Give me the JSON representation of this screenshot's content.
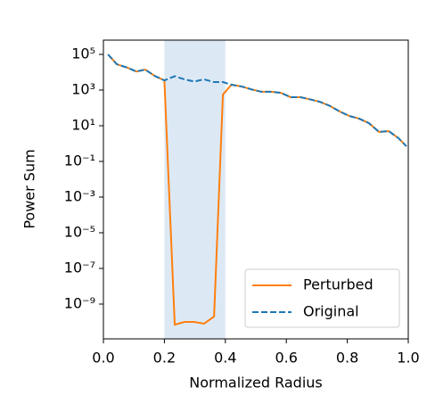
{
  "chart_data": {
    "type": "line",
    "x_label": "Normalized Radius",
    "y_label": "Power Sum",
    "log_y": true,
    "legend": "lower right",
    "shaded_region": [
      0.2,
      0.4
    ],
    "shaded_color": "#dce9f5",
    "xlim": [
      0,
      1.0
    ],
    "xticks": [
      {
        "value": 0,
        "label": "0.0"
      },
      0.2,
      0.4,
      0.6,
      0.8,
      {
        "value": 1.0,
        "label": "1.0"
      }
    ],
    "ylim": [
      1.12e-11,
      631000
    ],
    "yticks": [
      {
        "value": 100000,
        "label": "10⁵"
      },
      {
        "value": 1000,
        "label": "10³"
      },
      {
        "value": 10,
        "label": "10¹"
      },
      {
        "value": 0.1,
        "label": "10⁻¹"
      },
      {
        "value": 0.001,
        "label": "10⁻³"
      },
      {
        "value": 1e-05,
        "label": "10⁻⁵"
      },
      {
        "value": 1e-07,
        "label": "10⁻⁷"
      },
      {
        "value": 1e-09,
        "label": "10⁻⁹"
      }
    ],
    "x": [
      0.015,
      0.044,
      0.079,
      0.108,
      0.137,
      0.17,
      0.2,
      0.234,
      0.266,
      0.298,
      0.33,
      0.363,
      0.392,
      0.42,
      0.453,
      0.485,
      0.518,
      0.55,
      0.582,
      0.614,
      0.646,
      0.678,
      0.71,
      0.743,
      0.775,
      0.807,
      0.839,
      0.871,
      0.904,
      0.936,
      0.968,
      0.994
    ],
    "series": [
      {
        "name": "Perturbed",
        "color": "#ff7f0e",
        "dash": false,
        "values": [
          100000,
          28000,
          18000,
          11000,
          14000,
          6000,
          3500,
          7e-11,
          1e-10,
          1e-10,
          8e-11,
          2e-10,
          560,
          2000,
          1600,
          1100,
          800,
          800,
          700,
          400,
          400,
          300,
          220,
          130,
          63,
          35,
          25,
          14,
          4.5,
          5,
          2,
          0.7
        ]
      },
      {
        "name": "Original",
        "color": "#1f77b4",
        "dash": true,
        "values": [
          100000,
          28000,
          18000,
          11000,
          14000,
          6000,
          3500,
          6000,
          4000,
          3000,
          4000,
          2800,
          2800,
          2000,
          1600,
          1100,
          800,
          800,
          700,
          400,
          400,
          300,
          220,
          130,
          63,
          35,
          25,
          14,
          4.5,
          5,
          2,
          0.7
        ]
      }
    ]
  }
}
